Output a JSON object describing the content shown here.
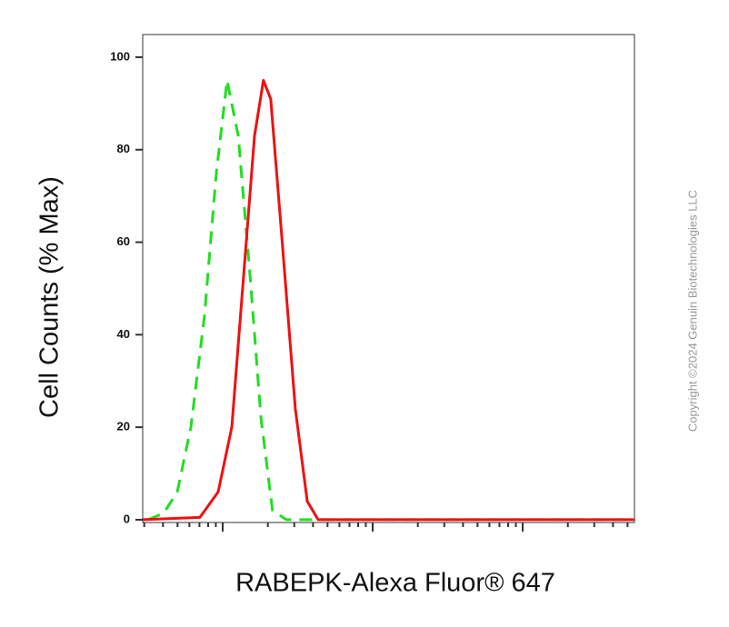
{
  "chart_data": {
    "type": "line",
    "xlabel": "RABEPK-Alexa Fluor® 647",
    "ylabel": "Cell Counts (% Max)",
    "copyright": "Copyright ©2024 Genuin Biotechnologies LLC",
    "xscale": "log",
    "xlim": [
      2.93,
      5560
    ],
    "ylim": [
      -0.6,
      104.9
    ],
    "yticks": [
      0,
      20,
      40,
      60,
      80,
      100
    ],
    "xticks": [
      3,
      4,
      5,
      6,
      7,
      8,
      9,
      10,
      20,
      30,
      40,
      50,
      60,
      70,
      80,
      90,
      100,
      200,
      300,
      400,
      500,
      600,
      700,
      800,
      900,
      1000,
      2000,
      3000,
      4000,
      5000
    ],
    "series": [
      {
        "color": "#22dd22",
        "dashed": true,
        "x": [
          3.18,
          4.04,
          4.98,
          6.14,
          7.56,
          9.07,
          10.7,
          12.7,
          15.2,
          18.0,
          21.5,
          26.6,
          5560
        ],
        "values": [
          0,
          1.4,
          6,
          20,
          44,
          75,
          95,
          83,
          53,
          22,
          2,
          0,
          0
        ]
      },
      {
        "color": "#ee1111",
        "dashed": false,
        "x": [
          2.93,
          7.05,
          9.33,
          11.5,
          13.8,
          16.3,
          18.7,
          20.9,
          24.8,
          30.5,
          36.6,
          43.3,
          5560
        ],
        "values": [
          0,
          0.5,
          6,
          20,
          53,
          83,
          95,
          91,
          61,
          24,
          4,
          0,
          0
        ]
      }
    ]
  }
}
